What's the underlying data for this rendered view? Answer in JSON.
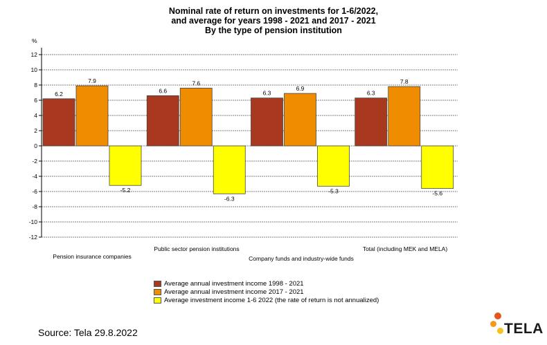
{
  "title_lines": [
    "Nominal rate of return on investments for 1-6/2022,",
    "and average for years 1998 - 2021 and 2017 - 2021",
    "By the type of pension institution"
  ],
  "chart_data": {
    "type": "bar",
    "ylabel": "%",
    "ylim": [
      -12,
      12
    ],
    "yticks": [
      12,
      10,
      8,
      6,
      4,
      2,
      0,
      -2,
      -4,
      -6,
      -8,
      -10,
      -12
    ],
    "grid": true,
    "categories": [
      "Pension insurance companies",
      "Public sector pension institutions",
      "Company funds and industry-wide funds",
      "Total (including MEK and MELA)"
    ],
    "series": [
      {
        "name": "Average annual investment income 1998 - 2021",
        "color": "#a8391e",
        "values": [
          6.2,
          6.6,
          6.3,
          6.3
        ]
      },
      {
        "name": "Average annual investment income 2017 - 2021",
        "color": "#ef8c00",
        "values": [
          7.9,
          7.6,
          6.9,
          7.8
        ]
      },
      {
        "name": "Average investment income 1-6 2022 (the rate of return is not annualized)",
        "color": "#ffff00",
        "values": [
          -5.2,
          -6.3,
          -5.3,
          -5.6
        ]
      }
    ],
    "value_labels": [
      [
        "6.2",
        "6.6",
        "6.3",
        "6.3"
      ],
      [
        "7.9",
        "7.6",
        "6.9",
        "7.8"
      ],
      [
        "-5.2",
        "-6.3",
        "-5.3",
        "-5.6"
      ]
    ]
  },
  "footer": {
    "source": "Source: Tela 29.8.2022",
    "logo_text": "TELA",
    "logo_colors": [
      "#e2571c",
      "#f29a1f",
      "#f6c21b"
    ]
  }
}
